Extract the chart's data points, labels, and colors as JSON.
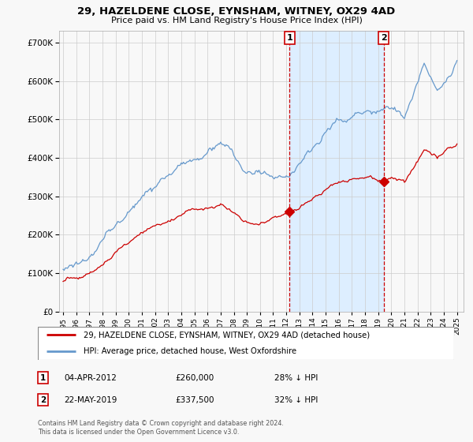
{
  "title": "29, HAZELDENE CLOSE, EYNSHAM, WITNEY, OX29 4AD",
  "subtitle": "Price paid vs. HM Land Registry's House Price Index (HPI)",
  "legend_line1": "29, HAZELDENE CLOSE, EYNSHAM, WITNEY, OX29 4AD (detached house)",
  "legend_line2": "HPI: Average price, detached house, West Oxfordshire",
  "annotation1_label": "1",
  "annotation1_date": "04-APR-2012",
  "annotation1_price": "£260,000",
  "annotation1_text": "28% ↓ HPI",
  "annotation1_year": 2012.25,
  "annotation1_value": 260000,
  "annotation2_label": "2",
  "annotation2_date": "22-MAY-2019",
  "annotation2_price": "£337,500",
  "annotation2_text": "32% ↓ HPI",
  "annotation2_year": 2019.42,
  "annotation2_value": 337500,
  "footer1": "Contains HM Land Registry data © Crown copyright and database right 2024.",
  "footer2": "This data is licensed under the Open Government Licence v3.0.",
  "house_color": "#cc0000",
  "hpi_color": "#6699cc",
  "shade_color": "#ddeeff",
  "background_color": "#f8f8f8",
  "grid_color": "#cccccc",
  "ylim": [
    0,
    730000
  ],
  "xlim_start": 1994.7,
  "xlim_end": 2025.5,
  "yticks": [
    0,
    100000,
    200000,
    300000,
    400000,
    500000,
    600000,
    700000
  ]
}
